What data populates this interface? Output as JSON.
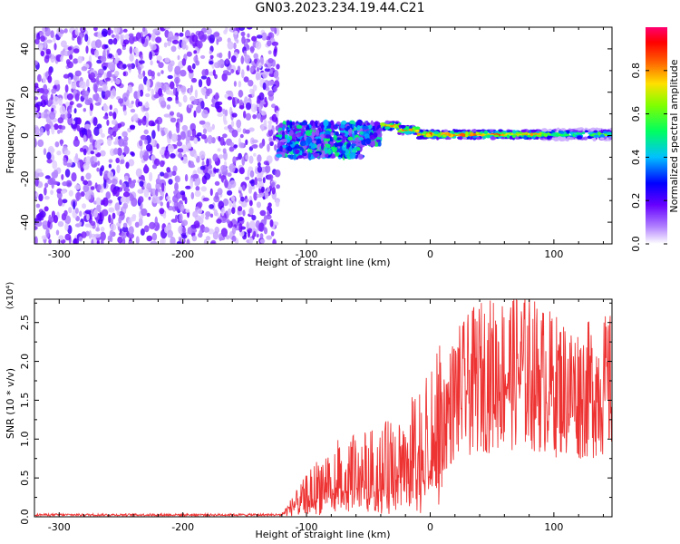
{
  "title": "GN03.2023.234.19.44.C21",
  "chart_data": [
    {
      "type": "heatmap",
      "xlabel": "Height of straight line (km)",
      "ylabel": "Frequency (Hz)",
      "xlim": [
        -320,
        147
      ],
      "ylim": [
        -50,
        50
      ],
      "xticks": [
        -300,
        -200,
        -100,
        0,
        100
      ],
      "yticks": [
        -40,
        -20,
        0,
        20,
        40
      ],
      "colorbar": {
        "label": "Normalized spectral amplitude",
        "range": [
          0.0,
          1.0
        ],
        "ticks": [
          "0.0",
          "0.2",
          "0.4",
          "0.6",
          "0.8"
        ],
        "colors": [
          "#ffffff",
          "#7a00ff",
          "#0000ff",
          "#00ffff",
          "#00ff00",
          "#ffff00",
          "#ff8000",
          "#ff0000",
          "#ff0080"
        ]
      },
      "regions": [
        {
          "x_range": [
            -320,
            -123
          ],
          "freq_range": [
            -50,
            50
          ],
          "description_level": 0.15
        },
        {
          "x_range": [
            -123,
            -40
          ],
          "freq_range": [
            -10,
            8
          ],
          "description_level": 0.35
        },
        {
          "x_range": [
            -40,
            147
          ],
          "freq_center": 0.5,
          "description_level": 0.9
        }
      ]
    },
    {
      "type": "line",
      "xlabel": "Height of straight line (km)",
      "ylabel": "SNR (10 * v/v)",
      "y_multiplier": "(x10⁴)",
      "xlim": [
        -320,
        147
      ],
      "ylim": [
        0,
        2.8
      ],
      "xticks": [
        -300,
        -200,
        -100,
        0,
        100
      ],
      "yticks": [
        "0.0",
        "0.5",
        "1.0",
        "1.5",
        "2.0",
        "2.5"
      ],
      "color": "#ee3333",
      "envelope": {
        "x": [
          -320,
          -120,
          -110,
          -95,
          -80,
          -60,
          -40,
          -20,
          0,
          10,
          20,
          40,
          60,
          70,
          80,
          100,
          120,
          147
        ],
        "y": [
          0.02,
          0.03,
          0.15,
          0.35,
          0.5,
          0.55,
          0.6,
          0.75,
          0.95,
          1.2,
          1.55,
          1.8,
          1.85,
          1.9,
          1.85,
          1.7,
          1.6,
          1.7
        ]
      }
    }
  ]
}
